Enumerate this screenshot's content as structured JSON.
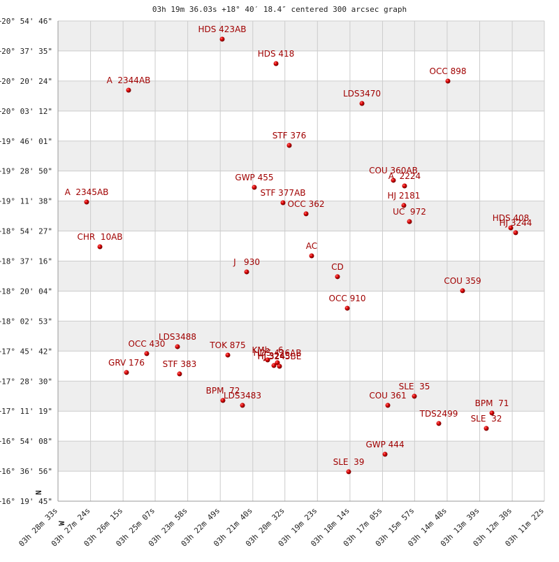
{
  "chart_data": {
    "type": "scatter",
    "title": "03h 19m 36.03s +18° 40′ 18.4″ centered 300 arcsec graph",
    "compass": {
      "north": "N",
      "west": "W"
    },
    "color": "#cc0000",
    "grid": true,
    "xlim": [
      12513,
      11482
    ],
    "ylim": [
      16.3292,
      20.9128
    ],
    "xticks": [
      {
        "value": 12513,
        "label": "03h 28m 33s"
      },
      {
        "value": 12444,
        "label": "03h 27m 24s"
      },
      {
        "value": 12375,
        "label": "03h 26m 15s"
      },
      {
        "value": 12307,
        "label": "03h 25m 07s"
      },
      {
        "value": 12238,
        "label": "03h 23m 58s"
      },
      {
        "value": 12169,
        "label": "03h 22m 49s"
      },
      {
        "value": 12100,
        "label": "03h 21m 40s"
      },
      {
        "value": 12032,
        "label": "03h 20m 32s"
      },
      {
        "value": 11963,
        "label": "03h 19m 23s"
      },
      {
        "value": 11894,
        "label": "03h 18m 14s"
      },
      {
        "value": 11825,
        "label": "03h 17m 05s"
      },
      {
        "value": 11757,
        "label": "03h 15m 57s"
      },
      {
        "value": 11688,
        "label": "03h 14m 48s"
      },
      {
        "value": 11619,
        "label": "03h 13m 39s"
      },
      {
        "value": 11550,
        "label": "03h 12m 30s"
      },
      {
        "value": 11482,
        "label": "03h 11m 22s"
      }
    ],
    "yticks": [
      {
        "value": 20.9128,
        "label": "+20° 54' 46\""
      },
      {
        "value": 20.6264,
        "label": "+20° 37' 35\""
      },
      {
        "value": 20.34,
        "label": "+20° 20' 24\""
      },
      {
        "value": 20.0533,
        "label": "+20° 03' 12\""
      },
      {
        "value": 19.7669,
        "label": "+19° 46' 01\""
      },
      {
        "value": 19.4806,
        "label": "+19° 28' 50\""
      },
      {
        "value": 19.1939,
        "label": "+19° 11' 38\""
      },
      {
        "value": 18.9075,
        "label": "+18° 54' 27\""
      },
      {
        "value": 18.6211,
        "label": "+18° 37' 16\""
      },
      {
        "value": 18.3344,
        "label": "+18° 20' 04\""
      },
      {
        "value": 18.0481,
        "label": "+18° 02' 53\""
      },
      {
        "value": 17.7617,
        "label": "+17° 45' 42\""
      },
      {
        "value": 17.475,
        "label": "+17° 28' 30\""
      },
      {
        "value": 17.1886,
        "label": "+17° 11' 19\""
      },
      {
        "value": 16.9022,
        "label": "+16° 54' 08\""
      },
      {
        "value": 16.6156,
        "label": "+16° 36' 56\""
      },
      {
        "value": 16.3292,
        "label": "+16° 19' 45\""
      }
    ],
    "labels": [
      "HDS 423AB",
      "HDS 418",
      "OCC 898",
      "A  2344AB",
      "LDS3470",
      "STF 376",
      "GWP 455",
      "COU 360AB",
      "A  2224",
      "HJ 2181",
      "UC  972",
      "A  2345AB",
      "STF 377AB",
      "OCC 362",
      "HDS 408",
      "HJ 3244",
      "CHR  10AB",
      "AC",
      "J   930",
      "CD",
      "COU 359",
      "OCC 910",
      "LDS3488",
      "OCC 430",
      "TOK 875",
      "GRV 176",
      "STF 383",
      "KMb   6",
      "HDS 426AB",
      "HJ 3243",
      "HJ 3245BE",
      "BPM  72",
      "LDS3483",
      "COU 361",
      "SLE  35",
      "TDS2499",
      "BPM  71",
      "SLE  32",
      "GWP 444",
      "SLE  39"
    ],
    "x": [
      12164.9,
      12050.8,
      11686.4,
      12363.4,
      11868.6,
      12022.7,
      12096.8,
      11802.0,
      11778.3,
      11779.8,
      11767.9,
      12452.3,
      12036.0,
      11987.1,
      11553.1,
      11542.8,
      12424.1,
      11975.3,
      12113.0,
      11920.5,
      11655.3,
      11899.7,
      12259.7,
      12324.9,
      12153.0,
      12367.8,
      12255.3,
      12068.6,
      12047.9,
      12055.3,
      12043.4,
      12163.4,
      12121.9,
      11813.8,
      11757.5,
      11705.7,
      11593.1,
      11605.0,
      11819.7,
      11896.8
    ],
    "values": [
      20.7394,
      20.506,
      20.339,
      20.2525,
      20.1257,
      19.7254,
      19.325,
      19.392,
      19.338,
      19.152,
      18.998,
      19.185,
      19.178,
      19.072,
      18.938,
      18.892,
      18.758,
      18.671,
      18.518,
      18.472,
      18.338,
      18.171,
      17.804,
      17.738,
      17.724,
      17.558,
      17.544,
      17.678,
      17.651,
      17.624,
      17.617,
      17.291,
      17.244,
      17.244,
      17.331,
      17.071,
      17.171,
      17.024,
      16.777,
      16.61
    ]
  }
}
